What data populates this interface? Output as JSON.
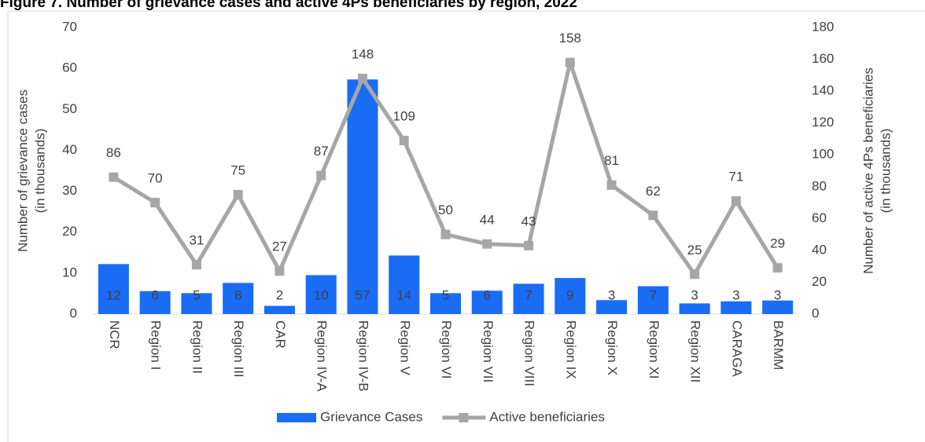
{
  "chart_data": {
    "type": "bar_line",
    "title": "Figure 7. Number of grievance cases and active 4Ps beneficiaries by region, 2022",
    "y_label": [
      "Number of grievance cases",
      "(in thousands)"
    ],
    "y2_label": [
      "Number of active 4Ps beneficiaries",
      "(in thousands)"
    ],
    "categories": [
      "NCR",
      "Region I",
      "Region II",
      "Region III",
      "CAR",
      "Region IV-A",
      "Region IV-B",
      "Region V",
      "Region VI",
      "Region VII",
      "Region VIII",
      "Region IX",
      "Region X",
      "Region XI",
      "Region XII",
      "CARAGA",
      "BARMM"
    ],
    "series": [
      {
        "name": "Grievance Cases",
        "color": "#1a6cf5",
        "type": "bar",
        "values": [
          12.2,
          5.6,
          5.1,
          7.6,
          2.0,
          9.5,
          57.3,
          14.3,
          5.1,
          5.7,
          7.4,
          8.8,
          3.4,
          6.8,
          2.6,
          3.1,
          3.3
        ],
        "value_labels": [
          "12",
          "6",
          "5",
          "8",
          "2",
          "10",
          "57",
          "14",
          "5",
          "6",
          "7",
          "9",
          "3",
          "7",
          "3",
          "3",
          "3"
        ]
      },
      {
        "name": "Active beneficiaries",
        "color": "#a6a6a6",
        "type": "line",
        "axis": "y2",
        "values": [
          86,
          70,
          31,
          75,
          27,
          87,
          148,
          109,
          50,
          44,
          43,
          158,
          81,
          62,
          25,
          71,
          29
        ]
      }
    ],
    "ylim": [
      0,
      70
    ],
    "yticks": [
      0,
      10,
      20,
      30,
      40,
      50,
      60,
      70
    ],
    "y2lim": [
      0,
      180
    ],
    "y2ticks": [
      0,
      20,
      40,
      60,
      80,
      100,
      120,
      140,
      160,
      180
    ],
    "legend": "bottom"
  }
}
